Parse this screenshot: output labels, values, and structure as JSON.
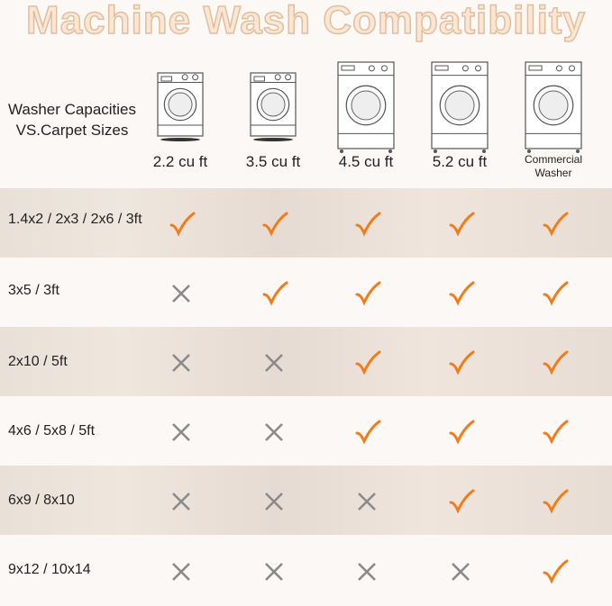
{
  "title": "Machine Wash Compatibility",
  "corner_label": [
    "Washer Capacities",
    "VS.Carpet Sizes"
  ],
  "columns": [
    {
      "label": "2.2  cu ft",
      "icon": "small-washer-icon"
    },
    {
      "label": "3.5  cu ft",
      "icon": "small-washer-icon"
    },
    {
      "label": "4.5  cu ft",
      "icon": "large-washer-icon"
    },
    {
      "label": "5.2  cu ft",
      "icon": "large-washer-icon"
    },
    {
      "label": "Commercial Washer",
      "icon": "large-washer-icon"
    }
  ],
  "rows": [
    {
      "label": "1.4x2 / 2x3 / 2x6 / 3ft",
      "values": [
        true,
        true,
        true,
        true,
        true
      ]
    },
    {
      "label": "3x5 / 3ft",
      "values": [
        false,
        true,
        true,
        true,
        true
      ]
    },
    {
      "label": "2x10 / 5ft",
      "values": [
        false,
        false,
        true,
        true,
        true
      ]
    },
    {
      "label": "4x6 / 5x8 / 5ft",
      "values": [
        false,
        false,
        true,
        true,
        true
      ]
    },
    {
      "label": "6x9 / 8x10",
      "values": [
        false,
        false,
        false,
        true,
        true
      ]
    },
    {
      "label": "9x12 / 10x14",
      "values": [
        false,
        false,
        false,
        false,
        true
      ]
    }
  ],
  "colors": {
    "check": "#f07d1a",
    "cross": "#8a8a8a",
    "title_fill": "#fbe6d3"
  }
}
